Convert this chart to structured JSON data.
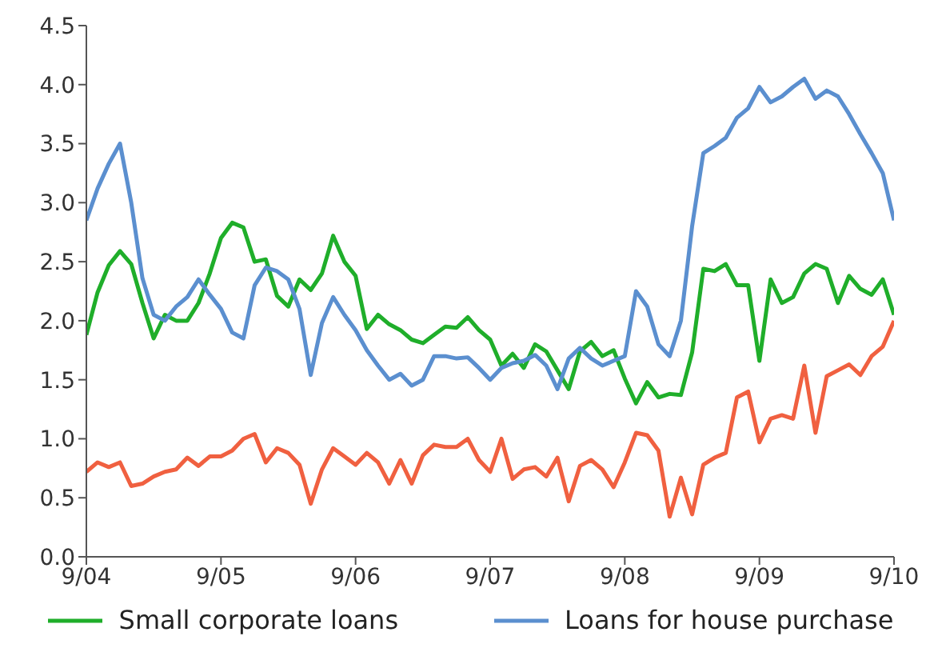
{
  "chart_data": {
    "type": "line",
    "x": [
      "2004-09",
      "2004-10",
      "2004-11",
      "2004-12",
      "2005-01",
      "2005-02",
      "2005-03",
      "2005-04",
      "2005-05",
      "2005-06",
      "2005-07",
      "2005-08",
      "2005-09",
      "2005-10",
      "2005-11",
      "2005-12",
      "2006-01",
      "2006-02",
      "2006-03",
      "2006-04",
      "2006-05",
      "2006-06",
      "2006-07",
      "2006-08",
      "2006-09",
      "2006-10",
      "2006-11",
      "2006-12",
      "2007-01",
      "2007-02",
      "2007-03",
      "2007-04",
      "2007-05",
      "2007-06",
      "2007-07",
      "2007-08",
      "2007-09",
      "2007-10",
      "2007-11",
      "2007-12",
      "2008-01",
      "2008-02",
      "2008-03",
      "2008-04",
      "2008-05",
      "2008-06",
      "2008-07",
      "2008-08",
      "2008-09",
      "2008-10",
      "2008-11",
      "2008-12",
      "2009-01",
      "2009-02",
      "2009-03",
      "2009-04",
      "2009-05",
      "2009-06",
      "2009-07",
      "2009-08",
      "2009-09",
      "2009-10",
      "2009-11",
      "2009-12",
      "2010-01",
      "2010-02",
      "2010-03",
      "2010-04",
      "2010-05",
      "2010-06",
      "2010-07",
      "2010-08",
      "2010-09"
    ],
    "series": [
      {
        "name": "Small corporate loans",
        "color": "#1fae2a",
        "values": [
          1.88,
          2.24,
          2.47,
          2.59,
          2.48,
          2.15,
          1.85,
          2.05,
          2.0,
          2.0,
          2.15,
          2.4,
          2.7,
          2.83,
          2.79,
          2.5,
          2.52,
          2.21,
          2.12,
          2.35,
          2.26,
          2.4,
          2.72,
          2.5,
          2.38,
          1.93,
          2.05,
          1.97,
          1.92,
          1.84,
          1.81,
          1.88,
          1.95,
          1.94,
          2.03,
          1.92,
          1.84,
          1.62,
          1.72,
          1.6,
          1.8,
          1.74,
          1.58,
          1.42,
          1.74,
          1.82,
          1.7,
          1.75,
          1.51,
          1.3,
          1.48,
          1.35,
          1.38,
          1.37,
          1.73,
          2.44,
          2.42,
          2.48,
          2.3,
          2.3,
          1.66,
          2.35,
          2.15,
          2.2,
          2.4,
          2.48,
          2.44,
          2.15,
          2.38,
          2.27,
          2.22,
          2.35,
          2.05
        ]
      },
      {
        "name": "Loans for house purchase",
        "color": "#5b8fcf",
        "values": [
          2.85,
          3.12,
          3.33,
          3.5,
          3.0,
          2.36,
          2.05,
          2.0,
          2.12,
          2.2,
          2.35,
          2.22,
          2.1,
          1.9,
          1.85,
          2.3,
          2.45,
          2.42,
          2.35,
          2.1,
          1.54,
          1.98,
          2.2,
          2.05,
          1.92,
          1.75,
          1.62,
          1.5,
          1.55,
          1.45,
          1.5,
          1.7,
          1.7,
          1.68,
          1.69,
          1.6,
          1.5,
          1.6,
          1.64,
          1.66,
          1.71,
          1.62,
          1.42,
          1.68,
          1.77,
          1.68,
          1.62,
          1.66,
          1.7,
          2.25,
          2.12,
          1.8,
          1.7,
          2.0,
          2.8,
          3.42,
          3.48,
          3.55,
          3.72,
          3.8,
          3.98,
          3.85,
          3.9,
          3.98,
          4.05,
          3.88,
          3.95,
          3.9,
          3.75,
          3.58,
          3.42,
          3.25,
          2.85
        ]
      },
      {
        "color": "#f06040",
        "values": [
          0.72,
          0.8,
          0.76,
          0.8,
          0.6,
          0.62,
          0.68,
          0.72,
          0.74,
          0.84,
          0.77,
          0.85,
          0.85,
          0.9,
          1.0,
          1.04,
          0.8,
          0.92,
          0.88,
          0.78,
          0.45,
          0.74,
          0.92,
          0.85,
          0.78,
          0.88,
          0.8,
          0.62,
          0.82,
          0.62,
          0.86,
          0.95,
          0.93,
          0.93,
          1.0,
          0.82,
          0.72,
          1.0,
          0.66,
          0.74,
          0.76,
          0.68,
          0.84,
          0.47,
          0.77,
          0.82,
          0.74,
          0.59,
          0.8,
          1.05,
          1.03,
          0.9,
          0.34,
          0.67,
          0.36,
          0.78,
          0.84,
          0.88,
          1.35,
          1.4,
          0.97,
          1.17,
          1.2,
          1.17,
          1.62,
          1.05,
          1.53,
          1.58,
          1.63,
          1.54,
          1.7,
          1.78,
          2.0
        ]
      }
    ],
    "xlim": [
      "2004-09",
      "2010-09"
    ],
    "xticks": [
      {
        "value": "2004-09",
        "label": "9/04"
      },
      {
        "value": "2005-09",
        "label": "9/05"
      },
      {
        "value": "2006-09",
        "label": "9/06"
      },
      {
        "value": "2007-09",
        "label": "9/07"
      },
      {
        "value": "2008-09",
        "label": "9/08"
      },
      {
        "value": "2009-09",
        "label": "9/09"
      },
      {
        "value": "2010-09",
        "label": "9/10"
      }
    ],
    "ylim": [
      0,
      4.5
    ],
    "yticks": [
      {
        "value": 0,
        "label": "0.0"
      },
      {
        "value": 0.5,
        "label": "0.5"
      },
      {
        "value": 1,
        "label": "1.0"
      },
      {
        "value": 1.5,
        "label": "1.5"
      },
      {
        "value": 2,
        "label": "2.0"
      },
      {
        "value": 2.5,
        "label": "2.5"
      },
      {
        "value": 3,
        "label": "3.0"
      },
      {
        "value": 3.5,
        "label": "3.5"
      },
      {
        "value": 4,
        "label": "4.0"
      },
      {
        "value": 4.5,
        "label": "4.5"
      }
    ],
    "grid": false,
    "legend": "bottom",
    "marker": "none",
    "line_style": "solid"
  }
}
